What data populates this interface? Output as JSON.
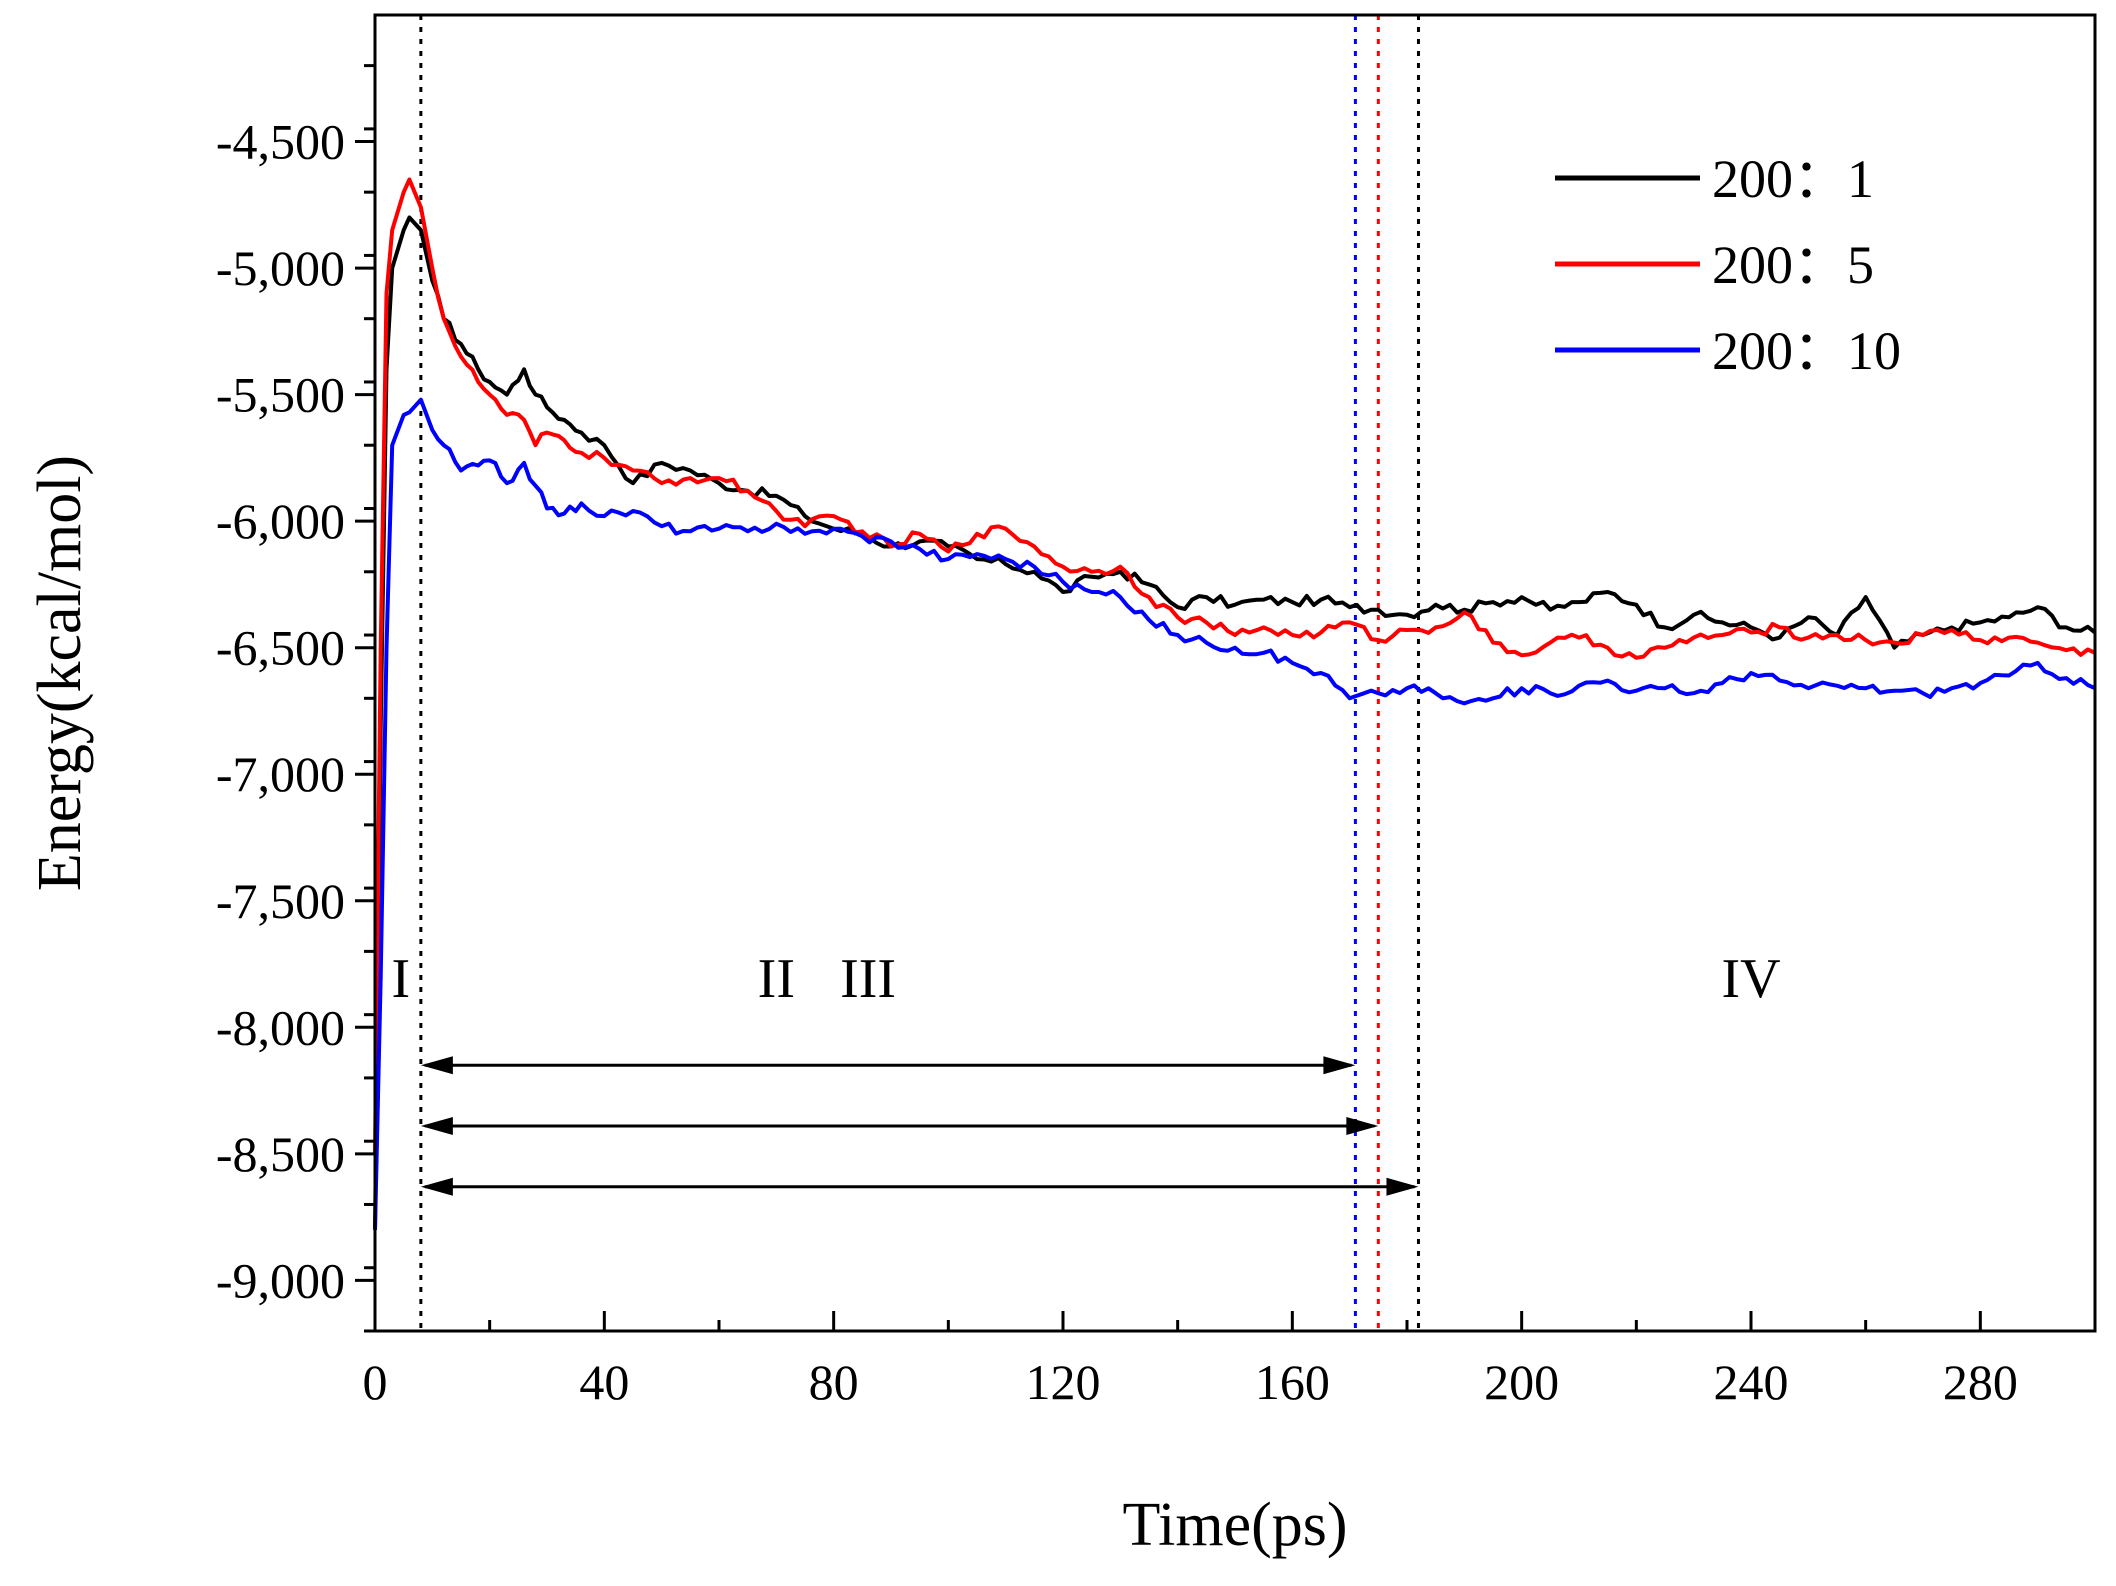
{
  "chart_data": {
    "type": "line",
    "xlabel": "Time(ps)",
    "ylabel": "Energy(kcal/mol)",
    "xlim": [
      0,
      300
    ],
    "ylim": [
      -9200,
      -4000
    ],
    "x_ticks": [
      0,
      40,
      80,
      120,
      160,
      200,
      240,
      280
    ],
    "x_tick_labels": [
      "0",
      "40",
      "80",
      "120",
      "160",
      "200",
      "240",
      "280"
    ],
    "y_ticks": [
      -9000,
      -8500,
      -8000,
      -7500,
      -7000,
      -6500,
      -6000,
      -5500,
      -5000,
      -4500
    ],
    "y_tick_labels": [
      "-9,000",
      "-8,500",
      "-8,000",
      "-7,500",
      "-7,000",
      "-6,500",
      "-6,000",
      "-5,500",
      "-5,000",
      "-4,500"
    ],
    "legend_position": "top-right",
    "series": [
      {
        "name": "200：1",
        "color": "#000000",
        "x": [
          0,
          1,
          2,
          3,
          5,
          6,
          8,
          10,
          12,
          15,
          18,
          20,
          23,
          26,
          28,
          30,
          33,
          36,
          40,
          45,
          50,
          55,
          60,
          65,
          70,
          75,
          80,
          85,
          90,
          95,
          100,
          105,
          110,
          115,
          120,
          125,
          130,
          135,
          140,
          145,
          150,
          155,
          160,
          165,
          170,
          175,
          180,
          185,
          190,
          195,
          200,
          205,
          210,
          215,
          220,
          225,
          230,
          235,
          240,
          245,
          250,
          255,
          260,
          265,
          270,
          275,
          280,
          285,
          290,
          295,
          300
        ],
        "y": [
          -8800,
          -6800,
          -5400,
          -5000,
          -4850,
          -4800,
          -4850,
          -5050,
          -5200,
          -5300,
          -5400,
          -5450,
          -5500,
          -5400,
          -5500,
          -5550,
          -5600,
          -5650,
          -5700,
          -5850,
          -5770,
          -5800,
          -5850,
          -5880,
          -5900,
          -5980,
          -6030,
          -6050,
          -6100,
          -6080,
          -6100,
          -6150,
          -6170,
          -6200,
          -6280,
          -6220,
          -6200,
          -6250,
          -6340,
          -6300,
          -6330,
          -6310,
          -6320,
          -6310,
          -6340,
          -6350,
          -6370,
          -6330,
          -6350,
          -6320,
          -6300,
          -6350,
          -6320,
          -6280,
          -6330,
          -6420,
          -6370,
          -6400,
          -6420,
          -6460,
          -6380,
          -6450,
          -6300,
          -6500,
          -6450,
          -6420,
          -6400,
          -6380,
          -6340,
          -6420,
          -6440
        ]
      },
      {
        "name": "200：5",
        "color": "#ff0000",
        "x": [
          0,
          1,
          2,
          3,
          5,
          6,
          8,
          10,
          12,
          15,
          18,
          20,
          23,
          26,
          28,
          30,
          33,
          36,
          40,
          45,
          50,
          55,
          60,
          65,
          70,
          75,
          80,
          85,
          90,
          95,
          100,
          105,
          110,
          115,
          120,
          125,
          130,
          135,
          140,
          145,
          150,
          155,
          160,
          165,
          170,
          175,
          180,
          185,
          190,
          195,
          200,
          205,
          210,
          215,
          220,
          225,
          230,
          235,
          240,
          245,
          250,
          255,
          260,
          265,
          270,
          275,
          280,
          285,
          290,
          295,
          300
        ],
        "y": [
          -8500,
          -6500,
          -5100,
          -4850,
          -4700,
          -4650,
          -4760,
          -5000,
          -5200,
          -5350,
          -5450,
          -5500,
          -5580,
          -5600,
          -5700,
          -5650,
          -5680,
          -5730,
          -5750,
          -5800,
          -5850,
          -5830,
          -5830,
          -5880,
          -5960,
          -6020,
          -5980,
          -6040,
          -6100,
          -6050,
          -6120,
          -6050,
          -6030,
          -6100,
          -6180,
          -6200,
          -6180,
          -6300,
          -6380,
          -6400,
          -6450,
          -6420,
          -6450,
          -6440,
          -6400,
          -6470,
          -6430,
          -6420,
          -6360,
          -6480,
          -6530,
          -6480,
          -6460,
          -6500,
          -6540,
          -6500,
          -6460,
          -6450,
          -6440,
          -6420,
          -6460,
          -6450,
          -6470,
          -6480,
          -6450,
          -6430,
          -6470,
          -6460,
          -6480,
          -6510,
          -6520
        ]
      },
      {
        "name": "200：10",
        "color": "#0000ff",
        "x": [
          0,
          1,
          2,
          3,
          5,
          6,
          8,
          10,
          12,
          15,
          18,
          20,
          23,
          26,
          28,
          30,
          33,
          36,
          40,
          45,
          50,
          55,
          60,
          65,
          70,
          75,
          80,
          85,
          90,
          95,
          100,
          105,
          110,
          115,
          120,
          125,
          130,
          135,
          140,
          145,
          150,
          155,
          160,
          165,
          170,
          175,
          180,
          185,
          190,
          195,
          200,
          205,
          210,
          215,
          220,
          225,
          230,
          235,
          240,
          245,
          250,
          255,
          260,
          265,
          270,
          275,
          280,
          285,
          290,
          295,
          300
        ],
        "y": [
          -8800,
          -7800,
          -6500,
          -5700,
          -5580,
          -5570,
          -5520,
          -5640,
          -5700,
          -5800,
          -5780,
          -5760,
          -5850,
          -5770,
          -5860,
          -5950,
          -5970,
          -5930,
          -5980,
          -5960,
          -6020,
          -6040,
          -6030,
          -6040,
          -6010,
          -6050,
          -6030,
          -6060,
          -6080,
          -6110,
          -6150,
          -6130,
          -6150,
          -6180,
          -6240,
          -6280,
          -6300,
          -6390,
          -6450,
          -6480,
          -6500,
          -6520,
          -6560,
          -6600,
          -6700,
          -6680,
          -6660,
          -6680,
          -6720,
          -6700,
          -6660,
          -6680,
          -6650,
          -6630,
          -6670,
          -6660,
          -6680,
          -6640,
          -6600,
          -6630,
          -6660,
          -6650,
          -6660,
          -6670,
          -6680,
          -6660,
          -6640,
          -6610,
          -6560,
          -6620,
          -6660
        ]
      }
    ],
    "vertical_markers": [
      {
        "x": 8,
        "color": "#000000",
        "name": "phase-boundary-1"
      },
      {
        "x": 171,
        "color": "#0000ff",
        "name": "phase-boundary-blue"
      },
      {
        "x": 175,
        "color": "#ff0000",
        "name": "phase-boundary-red"
      },
      {
        "x": 182,
        "color": "#000000",
        "name": "phase-boundary-black"
      }
    ],
    "span_arrows": [
      {
        "from": 8,
        "to": 171,
        "y": -8150
      },
      {
        "from": 8,
        "to": 175,
        "y": -8390
      },
      {
        "from": 8,
        "to": 182,
        "y": -8630
      }
    ],
    "region_labels": [
      {
        "text": "I",
        "x": 4.5,
        "y": -7880
      },
      {
        "text": "II",
        "x": 70,
        "y": -7880
      },
      {
        "text": "III",
        "x": 86,
        "y": -7880
      },
      {
        "text": "IV",
        "x": 240,
        "y": -7880
      }
    ]
  }
}
